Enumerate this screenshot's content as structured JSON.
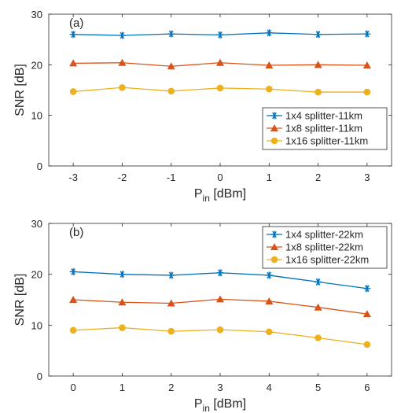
{
  "chart_data": [
    {
      "type": "line",
      "panel_label": "(a)",
      "x": [
        -3,
        -2,
        -1,
        0,
        1,
        2,
        3
      ],
      "xlim": [
        -3.5,
        3.5
      ],
      "ylim": [
        0,
        30
      ],
      "xticks": [
        -3,
        -2,
        -1,
        0,
        1,
        2,
        3
      ],
      "yticks": [
        0,
        10,
        20,
        30
      ],
      "xlabel_main": "P",
      "xlabel_sub": "in",
      "xlabel_rest": " [dBm]",
      "ylabel": "SNR [dB]",
      "grid": false,
      "legend_position": "lower-right",
      "series": [
        {
          "name": "1x4 splitter-11km",
          "color": "#0072BD",
          "marker": "star",
          "values": [
            26.0,
            25.8,
            26.1,
            25.9,
            26.3,
            26.0,
            26.1
          ]
        },
        {
          "name": "1x8 splitter-11km",
          "color": "#D95319",
          "marker": "triangle",
          "values": [
            20.3,
            20.4,
            19.7,
            20.4,
            19.9,
            20.0,
            19.9
          ]
        },
        {
          "name": "1x16 splitter-11km",
          "color": "#EDB120",
          "marker": "circle",
          "values": [
            14.7,
            15.5,
            14.8,
            15.4,
            15.2,
            14.6,
            14.6
          ]
        }
      ]
    },
    {
      "type": "line",
      "panel_label": "(b)",
      "x": [
        0,
        1,
        2,
        3,
        4,
        5,
        6
      ],
      "xlim": [
        -0.5,
        6.5
      ],
      "ylim": [
        0,
        30
      ],
      "xticks": [
        0,
        1,
        2,
        3,
        4,
        5,
        6
      ],
      "yticks": [
        0,
        10,
        20,
        30
      ],
      "xlabel_main": "P",
      "xlabel_sub": "in",
      "xlabel_rest": " [dBm]",
      "ylabel": "SNR [dB]",
      "grid": false,
      "legend_position": "top-right",
      "series": [
        {
          "name": "1x4 splitter-22km",
          "color": "#0072BD",
          "marker": "star",
          "values": [
            20.5,
            20.0,
            19.8,
            20.3,
            19.8,
            18.5,
            17.2
          ]
        },
        {
          "name": "1x8 splitter-22km",
          "color": "#D95319",
          "marker": "triangle",
          "values": [
            15.0,
            14.5,
            14.3,
            15.1,
            14.7,
            13.5,
            12.2
          ]
        },
        {
          "name": "1x16 splitter-22km",
          "color": "#EDB120",
          "marker": "circle",
          "values": [
            9.0,
            9.5,
            8.8,
            9.1,
            8.7,
            7.5,
            6.2
          ]
        }
      ]
    }
  ]
}
